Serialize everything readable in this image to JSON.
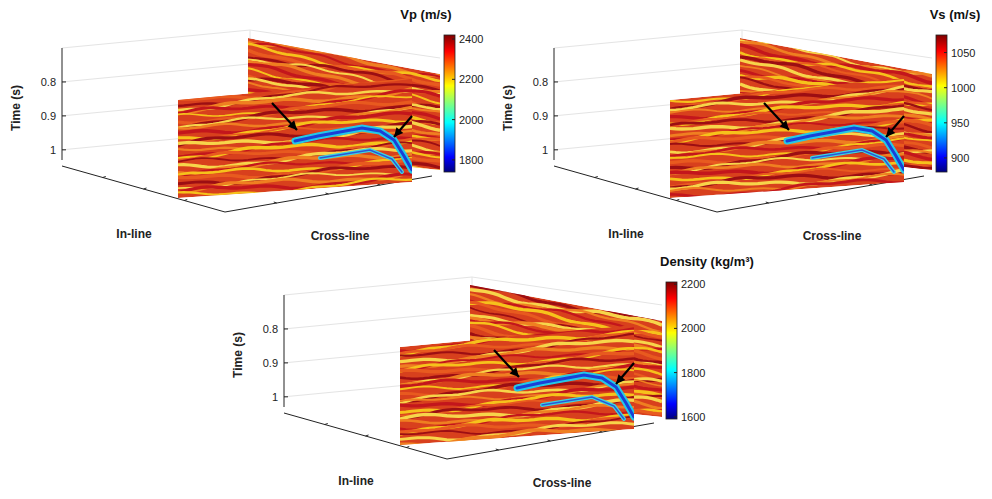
{
  "chart_data": [
    {
      "type": "seismic_volume",
      "title": "Vp (m/s)",
      "xlabel": "In-line",
      "ylabel": "Cross-line",
      "zlabel": "Time (s)",
      "zlim": [
        0.7,
        1.03
      ],
      "zticks": [
        0.8,
        0.9,
        1
      ],
      "colorbar_range": [
        1740,
        2420
      ],
      "colorbar_ticks": [
        1800,
        2000,
        2200,
        2400
      ]
    },
    {
      "type": "seismic_volume",
      "title": "Vs (m/s)",
      "xlabel": "In-line",
      "ylabel": "Cross-line",
      "zlabel": "Time (s)",
      "zlim": [
        0.7,
        1.03
      ],
      "zticks": [
        0.8,
        0.9,
        1
      ],
      "colorbar_range": [
        880,
        1075
      ],
      "colorbar_ticks": [
        900,
        950,
        1000,
        1050
      ]
    },
    {
      "type": "seismic_volume",
      "title": "Density (kg/m³)",
      "xlabel": "In-line",
      "ylabel": "Cross-line",
      "zlabel": "Time (s)",
      "zlim": [
        0.7,
        1.03
      ],
      "zticks": [
        0.8,
        0.9,
        1
      ],
      "colorbar_range": [
        1590,
        2210
      ],
      "colorbar_ticks": [
        1600,
        1800,
        2000,
        2200
      ]
    }
  ]
}
